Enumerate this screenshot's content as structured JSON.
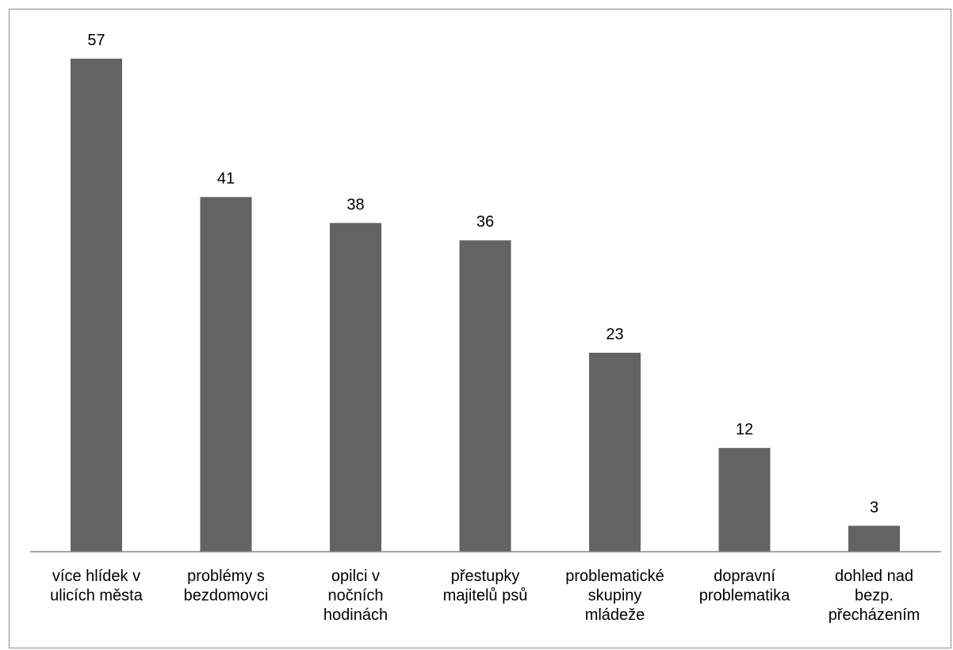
{
  "chart_data": {
    "type": "bar",
    "categories": [
      [
        "více hlídek v",
        "ulicích města"
      ],
      [
        "problémy  s",
        "bezdomovci"
      ],
      [
        "opilci v",
        "nočních",
        "hodinách"
      ],
      [
        "přestupky",
        "majitelů psů"
      ],
      [
        "problematické",
        "skupiny",
        "mládeže"
      ],
      [
        "dopravní",
        "problematika"
      ],
      [
        "dohled nad",
        "bezp.",
        "přecházením"
      ]
    ],
    "values": [
      57,
      41,
      38,
      36,
      23,
      12,
      3
    ],
    "value_labels": [
      "57",
      "41",
      "38",
      "36",
      "23",
      "12",
      "3"
    ],
    "title": "",
    "xlabel": "",
    "ylabel": "",
    "ylim": [
      0,
      60
    ],
    "grid": false,
    "legend": "none",
    "bar_color": "#636363",
    "axis_color": "#868686"
  }
}
